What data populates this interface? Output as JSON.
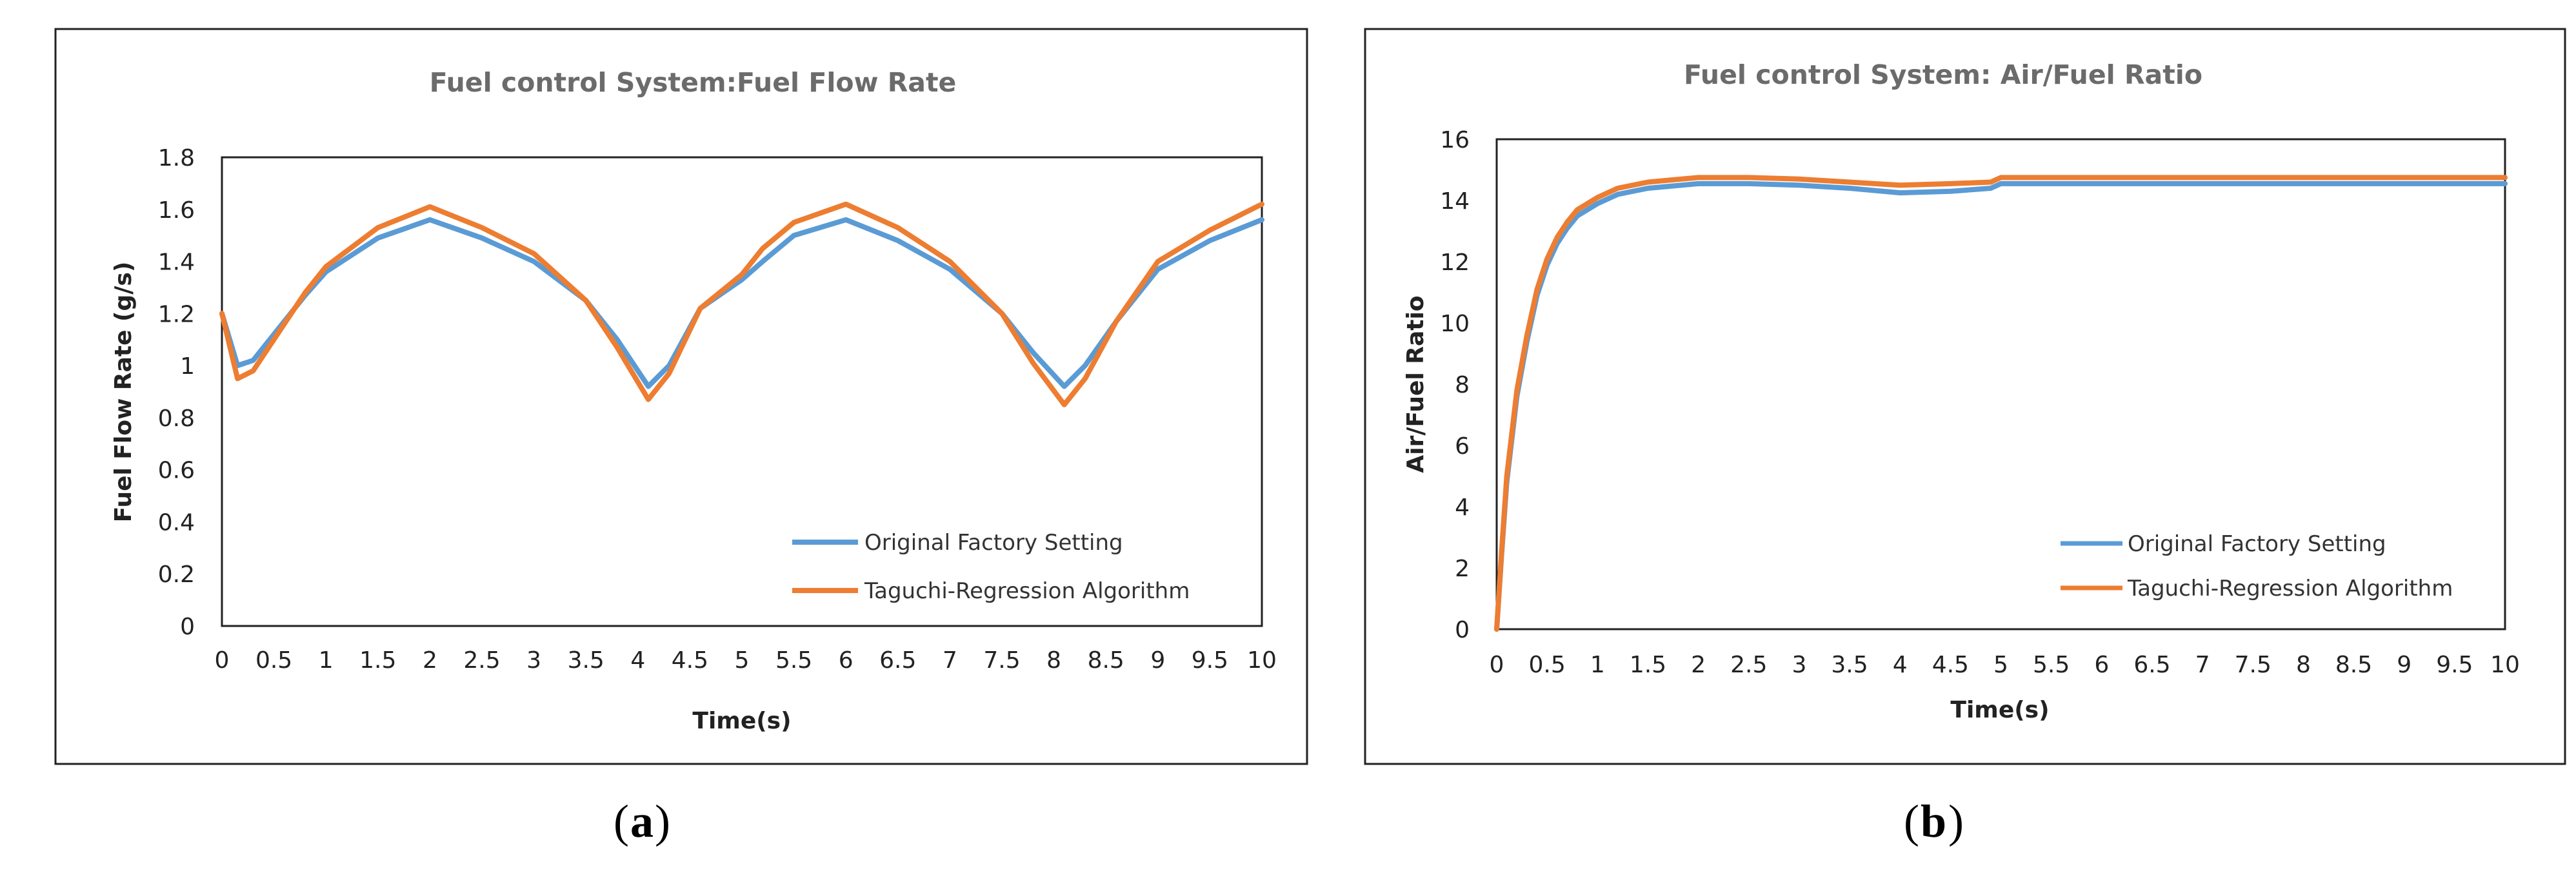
{
  "chart_data": [
    {
      "type": "line",
      "panel_label": "a",
      "title": "Fuel control System:Fuel Flow Rate",
      "xlabel": "Time(s)",
      "ylabel": "Fuel Flow Rate  (g/s)",
      "xlim": [
        0,
        10
      ],
      "ylim": [
        0,
        1.8
      ],
      "x_ticks": [
        "0",
        "0.5",
        "1",
        "1.5",
        "2",
        "2.5",
        "3",
        "3.5",
        "4",
        "4.5",
        "5",
        "5.5",
        "6",
        "6.5",
        "7",
        "7.5",
        "8",
        "8.5",
        "9",
        "9.5",
        "10"
      ],
      "y_ticks": [
        "0",
        "0.2",
        "0.4",
        "0.6",
        "0.8",
        "1",
        "1.2",
        "1.4",
        "1.6",
        "1.8"
      ],
      "legend": "bottom-right",
      "series": [
        {
          "name": "Original Factory Setting",
          "color": "#5b9bd5",
          "x": [
            0,
            0.15,
            0.3,
            0.5,
            0.8,
            1.0,
            1.5,
            2.0,
            2.5,
            3.0,
            3.5,
            3.8,
            4.1,
            4.3,
            4.6,
            5.0,
            5.2,
            5.5,
            6.0,
            6.5,
            7.0,
            7.5,
            7.8,
            8.1,
            8.3,
            8.6,
            9.0,
            9.5,
            10.0
          ],
          "y": [
            1.2,
            1.0,
            1.02,
            1.12,
            1.27,
            1.36,
            1.49,
            1.56,
            1.49,
            1.4,
            1.25,
            1.1,
            0.92,
            1.0,
            1.22,
            1.33,
            1.4,
            1.5,
            1.56,
            1.48,
            1.37,
            1.2,
            1.05,
            0.92,
            1.0,
            1.17,
            1.37,
            1.48,
            1.56
          ]
        },
        {
          "name": "Taguchi-Regression Algorithm",
          "color": "#ed7d31",
          "x": [
            0,
            0.15,
            0.3,
            0.5,
            0.8,
            1.0,
            1.5,
            2.0,
            2.5,
            3.0,
            3.5,
            3.8,
            4.1,
            4.3,
            4.6,
            5.0,
            5.2,
            5.5,
            6.0,
            6.5,
            7.0,
            7.5,
            7.8,
            8.1,
            8.3,
            8.6,
            9.0,
            9.5,
            10.0
          ],
          "y": [
            1.2,
            0.95,
            0.98,
            1.1,
            1.28,
            1.38,
            1.53,
            1.61,
            1.53,
            1.43,
            1.25,
            1.07,
            0.87,
            0.97,
            1.22,
            1.35,
            1.45,
            1.55,
            1.62,
            1.53,
            1.4,
            1.2,
            1.01,
            0.85,
            0.95,
            1.17,
            1.4,
            1.52,
            1.62
          ]
        }
      ]
    },
    {
      "type": "line",
      "panel_label": "b",
      "title": "Fuel control System: Air/Fuel Ratio",
      "xlabel": "Time(s)",
      "ylabel": "Air/Fuel Ratio",
      "xlim": [
        0,
        10
      ],
      "ylim": [
        0,
        16
      ],
      "x_ticks": [
        "0",
        "0.5",
        "1",
        "1.5",
        "2",
        "2.5",
        "3",
        "3.5",
        "4",
        "4.5",
        "5",
        "5.5",
        "6",
        "6.5",
        "7",
        "7.5",
        "8",
        "8.5",
        "9",
        "9.5",
        "10"
      ],
      "y_ticks": [
        "0",
        "2",
        "4",
        "6",
        "8",
        "10",
        "12",
        "14",
        "16"
      ],
      "legend": "bottom-right",
      "series": [
        {
          "name": "Original Factory Setting",
          "color": "#5b9bd5",
          "x": [
            0,
            0.05,
            0.1,
            0.2,
            0.3,
            0.4,
            0.5,
            0.6,
            0.7,
            0.8,
            1.0,
            1.2,
            1.5,
            2.0,
            2.5,
            3.0,
            3.5,
            4.0,
            4.5,
            4.9,
            5.0,
            6.0,
            7.0,
            8.0,
            9.0,
            10.0
          ],
          "y": [
            0,
            2.5,
            4.8,
            7.6,
            9.4,
            10.9,
            11.9,
            12.6,
            13.1,
            13.5,
            13.9,
            14.2,
            14.4,
            14.55,
            14.55,
            14.5,
            14.4,
            14.25,
            14.3,
            14.4,
            14.55,
            14.55,
            14.55,
            14.55,
            14.55,
            14.55
          ]
        },
        {
          "name": "Taguchi-Regression Algorithm",
          "color": "#ed7d31",
          "x": [
            0,
            0.05,
            0.1,
            0.2,
            0.3,
            0.4,
            0.5,
            0.6,
            0.7,
            0.8,
            1.0,
            1.2,
            1.5,
            2.0,
            2.5,
            3.0,
            3.5,
            4.0,
            4.5,
            4.9,
            5.0,
            6.0,
            7.0,
            8.0,
            9.0,
            10.0
          ],
          "y": [
            0,
            2.6,
            5.0,
            7.8,
            9.6,
            11.1,
            12.1,
            12.8,
            13.3,
            13.7,
            14.1,
            14.4,
            14.6,
            14.75,
            14.75,
            14.7,
            14.6,
            14.5,
            14.55,
            14.6,
            14.75,
            14.75,
            14.75,
            14.75,
            14.75,
            14.75
          ]
        }
      ]
    }
  ]
}
